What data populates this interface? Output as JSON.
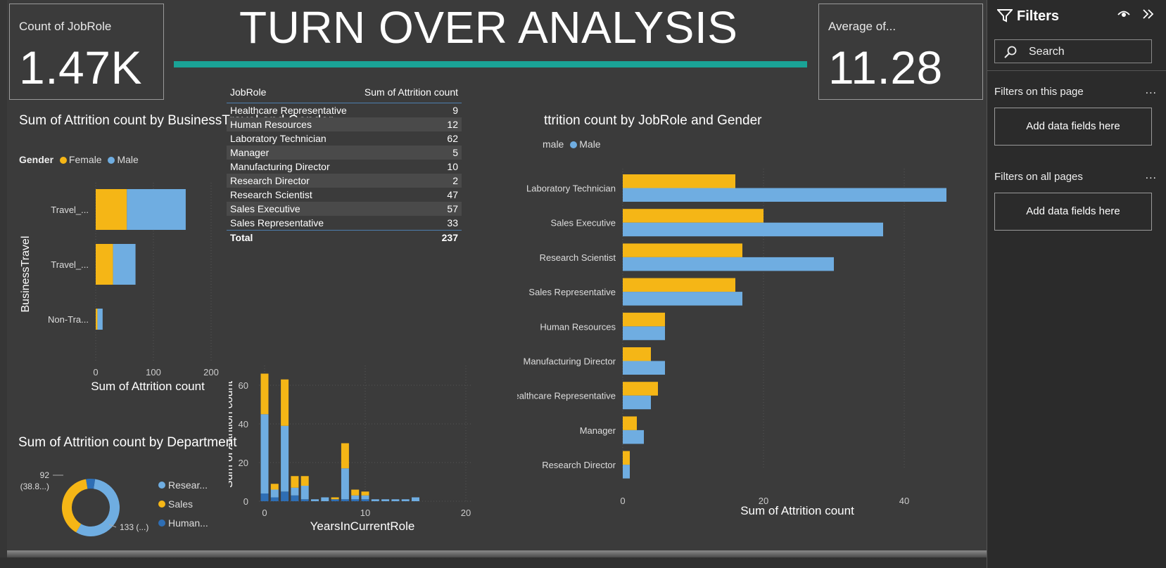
{
  "header": {
    "title": "TURN OVER ANALYSIS"
  },
  "kpi_left": {
    "caption": "Count of JobRole",
    "value": "1.47K"
  },
  "kpi_right": {
    "caption": "Average of...",
    "value": "11.28"
  },
  "colors": {
    "female": "#f5b616",
    "male": "#6fade1",
    "human": "#2e6eb4",
    "teal": "#1aa396"
  },
  "travel_chart": {
    "title": "Sum of Attrition count by BusinessTravel and Gender",
    "legend_title": "Gender",
    "legend": [
      "Female",
      "Male"
    ],
    "ylabel": "BusinessTravel",
    "xlabel": "Sum of Attrition count",
    "ticks": [
      "0",
      "100",
      "200"
    ]
  },
  "job_table": {
    "headers": [
      "JobRole",
      "Sum of Attrition count"
    ],
    "rows": [
      {
        "role": "Healthcare Representative",
        "value": "9"
      },
      {
        "role": "Human Resources",
        "value": "12"
      },
      {
        "role": "Laboratory Technician",
        "value": "62"
      },
      {
        "role": "Manager",
        "value": "5"
      },
      {
        "role": "Manufacturing Director",
        "value": "10"
      },
      {
        "role": "Research Director",
        "value": "2"
      },
      {
        "role": "Research Scientist",
        "value": "47"
      },
      {
        "role": "Sales Executive",
        "value": "57"
      },
      {
        "role": "Sales Representative",
        "value": "33"
      }
    ],
    "total": {
      "label": "Total",
      "value": "237"
    }
  },
  "role_chart": {
    "title": "ttrition count by JobRole and Gender",
    "legend": [
      "male",
      "Male"
    ],
    "xlabel": "Sum of Attrition count",
    "ticks": [
      "0",
      "20",
      "40"
    ]
  },
  "dept_chart": {
    "title": "Sum of Attrition count by Department",
    "legend_title": "Department",
    "legend": [
      "Resear...",
      "Sales",
      "Human..."
    ],
    "label_a_1": "92",
    "label_a_2": "(38.8...)",
    "label_b": "133 (...)"
  },
  "years_chart": {
    "ylabel": "Sum of Attrition count",
    "xlabel": "YearsInCurrentRole",
    "yticks": [
      "0",
      "20",
      "40",
      "60"
    ],
    "xticks": [
      "0",
      "10",
      "20"
    ]
  },
  "filters": {
    "title": "Filters",
    "search_placeholder": "Search",
    "page_label": "Filters on this page",
    "all_label": "Filters on all pages",
    "more": "...",
    "drop": "Add data fields here"
  },
  "chart_data": [
    {
      "type": "bar",
      "orientation": "horizontal",
      "stacked": true,
      "categories": [
        "Travel_...",
        "Travel_...",
        "Non-Tra..."
      ],
      "series": [
        {
          "name": "Female",
          "values": [
            54,
            30,
            3
          ]
        },
        {
          "name": "Male",
          "values": [
            102,
            39,
            9
          ]
        }
      ],
      "xlim": [
        0,
        200
      ]
    },
    {
      "type": "bar",
      "orientation": "horizontal",
      "grouped": true,
      "categories": [
        "Laboratory Technician",
        "Sales Executive",
        "Research Scientist",
        "Sales Representative",
        "Human Resources",
        "Manufacturing Director",
        "Healthcare Representative",
        "Manager",
        "Research Director"
      ],
      "series": [
        {
          "name": "Female",
          "values": [
            16,
            20,
            17,
            16,
            6,
            4,
            5,
            2,
            1
          ]
        },
        {
          "name": "Male",
          "values": [
            46,
            37,
            30,
            17,
            6,
            6,
            4,
            3,
            1
          ]
        }
      ],
      "xlim": [
        0,
        46
      ]
    },
    {
      "type": "pie",
      "donut": true,
      "labels": [
        "Research & Development",
        "Sales",
        "Human Resources"
      ],
      "values": [
        133,
        92,
        12
      ]
    },
    {
      "type": "bar",
      "stacked": true,
      "x": [
        0,
        1,
        2,
        3,
        4,
        5,
        6,
        7,
        8,
        9,
        10,
        11,
        12,
        13,
        14,
        15
      ],
      "series": [
        {
          "name": "Female",
          "values": [
            21,
            3,
            24,
            6,
            5,
            0,
            0,
            1,
            13,
            3,
            2,
            0,
            0,
            0,
            0,
            0
          ]
        },
        {
          "name": "Male",
          "values": [
            45,
            6,
            39,
            7,
            8,
            1,
            2,
            1,
            17,
            3,
            3,
            1,
            1,
            1,
            1,
            2
          ]
        },
        {
          "name": "Human Resources",
          "values": [
            4,
            2,
            5,
            3,
            1,
            0,
            0,
            1,
            1,
            1,
            1,
            0,
            0,
            0,
            0,
            0
          ]
        }
      ],
      "xlim": [
        0,
        20
      ],
      "ylim": [
        0,
        72
      ]
    }
  ]
}
